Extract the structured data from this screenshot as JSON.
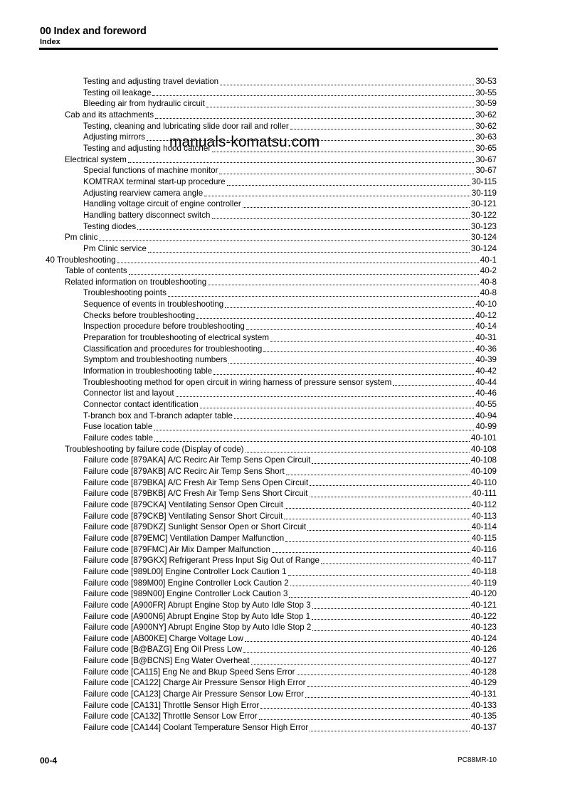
{
  "header": {
    "title": "00 Index and foreword",
    "subtitle": "Index"
  },
  "watermark": "manuals-komatsu.com",
  "toc": [
    {
      "level": 2,
      "text": "Testing and adjusting travel deviation",
      "page": "30-53"
    },
    {
      "level": 2,
      "text": "Testing oil leakage",
      "page": "30-55"
    },
    {
      "level": 2,
      "text": "Bleeding air from hydraulic circuit",
      "page": "30-59"
    },
    {
      "level": 1,
      "text": "Cab and its attachments",
      "page": "30-62"
    },
    {
      "level": 2,
      "text": "Testing, cleaning and lubricating slide door rail and roller",
      "page": "30-62"
    },
    {
      "level": 2,
      "text": "Adjusting mirrors",
      "page": "30-63"
    },
    {
      "level": 2,
      "text": "Testing and adjusting hood catcher",
      "page": "30-65"
    },
    {
      "level": 1,
      "text": "Electrical system",
      "page": "30-67"
    },
    {
      "level": 2,
      "text": "Special functions of machine monitor",
      "page": "30-67"
    },
    {
      "level": 2,
      "text": "KOMTRAX terminal start-up procedure",
      "page": "30-115"
    },
    {
      "level": 2,
      "text": "Adjusting rearview camera angle",
      "page": "30-119"
    },
    {
      "level": 2,
      "text": "Handling voltage circuit of engine controller",
      "page": "30-121"
    },
    {
      "level": 2,
      "text": "Handling battery disconnect switch",
      "page": "30-122"
    },
    {
      "level": 2,
      "text": "Testing diodes",
      "page": "30-123"
    },
    {
      "level": 1,
      "text": "Pm clinic",
      "page": "30-124"
    },
    {
      "level": 2,
      "text": "Pm Clinic service",
      "page": "30-124"
    },
    {
      "level": 0,
      "text": "40 Troubleshooting",
      "page": "40-1"
    },
    {
      "level": 1,
      "text": "Table of contents",
      "page": "40-2"
    },
    {
      "level": 1,
      "text": "Related information on troubleshooting",
      "page": "40-8"
    },
    {
      "level": 2,
      "text": "Troubleshooting points",
      "page": "40-8"
    },
    {
      "level": 2,
      "text": "Sequence of events in troubleshooting",
      "page": "40-10"
    },
    {
      "level": 2,
      "text": "Checks before troubleshooting",
      "page": "40-12"
    },
    {
      "level": 2,
      "text": "Inspection procedure before troubleshooting",
      "page": "40-14"
    },
    {
      "level": 2,
      "text": "Preparation for troubleshooting of electrical system",
      "page": "40-31"
    },
    {
      "level": 2,
      "text": "Classification and procedures for troubleshooting",
      "page": "40-36"
    },
    {
      "level": 2,
      "text": "Symptom and troubleshooting numbers",
      "page": "40-39"
    },
    {
      "level": 2,
      "text": "Information in troubleshooting table",
      "page": "40-42"
    },
    {
      "level": 2,
      "text": "Troubleshooting method for open circuit in wiring harness of pressure sensor system",
      "page": "40-44"
    },
    {
      "level": 2,
      "text": "Connector list and layout",
      "page": "40-46"
    },
    {
      "level": 2,
      "text": "Connector contact identification",
      "page": "40-55"
    },
    {
      "level": 2,
      "text": "T-branch box and T-branch adapter table",
      "page": "40-94"
    },
    {
      "level": 2,
      "text": "Fuse location table",
      "page": "40-99"
    },
    {
      "level": 2,
      "text": "Failure codes table",
      "page": "40-101"
    },
    {
      "level": 1,
      "text": "Troubleshooting by failure code (Display of code)",
      "page": "40-108"
    },
    {
      "level": 2,
      "text": "Failure code [879AKA] A/C Recirc Air Temp Sens Open Circuit",
      "page": "40-108"
    },
    {
      "level": 2,
      "text": "Failure code [879AKB] A/C Recirc Air Temp Sens Short",
      "page": "40-109"
    },
    {
      "level": 2,
      "text": "Failure code [879BKA] A/C Fresh Air Temp Sens Open Circuit",
      "page": "40-110"
    },
    {
      "level": 2,
      "text": "Failure code [879BKB] A/C Fresh Air Temp Sens Short Circuit",
      "page": "40-111"
    },
    {
      "level": 2,
      "text": "Failure code [879CKA] Ventilating Sensor Open Circuit",
      "page": "40-112"
    },
    {
      "level": 2,
      "text": "Failure code [879CKB] Ventilating Sensor Short Circuit",
      "page": "40-113"
    },
    {
      "level": 2,
      "text": "Failure code [879DKZ] Sunlight Sensor Open or Short Circuit",
      "page": "40-114"
    },
    {
      "level": 2,
      "text": "Failure code [879EMC] Ventilation Damper Malfunction",
      "page": "40-115"
    },
    {
      "level": 2,
      "text": "Failure code [879FMC] Air Mix Damper Malfunction",
      "page": "40-116"
    },
    {
      "level": 2,
      "text": "Failure code [879GKX] Refrigerant Press Input Sig Out of Range",
      "page": "40-117"
    },
    {
      "level": 2,
      "text": "Failure code [989L00] Engine Controller Lock Caution 1",
      "page": "40-118"
    },
    {
      "level": 2,
      "text": "Failure code [989M00] Engine Controller Lock Caution 2",
      "page": "40-119"
    },
    {
      "level": 2,
      "text": "Failure code [989N00] Engine Controller Lock Caution 3",
      "page": "40-120"
    },
    {
      "level": 2,
      "text": "Failure code [A900FR] Abrupt Engine Stop by Auto Idle Stop 3",
      "page": "40-121"
    },
    {
      "level": 2,
      "text": "Failure code [A900N6] Abrupt Engine Stop by Auto Idle Stop 1",
      "page": "40-122"
    },
    {
      "level": 2,
      "text": "Failure code [A900NY] Abrupt Engine Stop by Auto Idle Stop 2",
      "page": "40-123"
    },
    {
      "level": 2,
      "text": "Failure code [AB00KE] Charge Voltage Low",
      "page": "40-124"
    },
    {
      "level": 2,
      "text": "Failure code [B@BAZG] Eng Oil Press Low",
      "page": "40-126"
    },
    {
      "level": 2,
      "text": "Failure code [B@BCNS] Eng Water Overheat",
      "page": "40-127"
    },
    {
      "level": 2,
      "text": "Failure code [CA115] Eng Ne and Bkup Speed Sens Error",
      "page": "40-128"
    },
    {
      "level": 2,
      "text": "Failure code [CA122] Charge Air Pressure Sensor High Error",
      "page": "40-129"
    },
    {
      "level": 2,
      "text": "Failure code [CA123] Charge Air Pressure Sensor Low Error",
      "page": "40-131"
    },
    {
      "level": 2,
      "text": "Failure code [CA131] Throttle Sensor High Error",
      "page": "40-133"
    },
    {
      "level": 2,
      "text": "Failure code [CA132] Throttle Sensor Low Error",
      "page": "40-135"
    },
    {
      "level": 2,
      "text": "Failure code [CA144] Coolant Temperature Sensor High Error",
      "page": "40-137"
    }
  ],
  "footer": {
    "page_number": "00-4",
    "model": "PC88MR-10"
  }
}
